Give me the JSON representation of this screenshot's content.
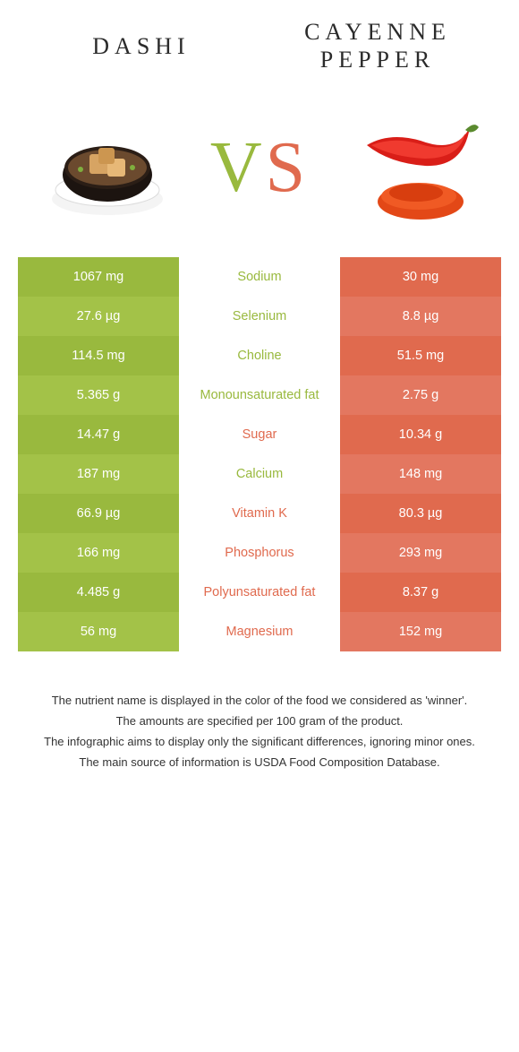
{
  "header": {
    "left_title": "DASHI",
    "right_title_line1": "CAYENNE",
    "right_title_line2": "PEPPER",
    "vs_v": "V",
    "vs_s": "S"
  },
  "colors": {
    "left_color": "#99b93e",
    "right_color": "#e06a4e",
    "left_alt": "#a3c248",
    "right_alt": "#e37760",
    "left_alt2": "#8fae37",
    "right_alt2": "#d95e41",
    "text_dark": "#2b2b2b",
    "white": "#ffffff"
  },
  "rows": [
    {
      "left": "1067 mg",
      "label": "Sodium",
      "right": "30 mg",
      "winner": "left"
    },
    {
      "left": "27.6 µg",
      "label": "Selenium",
      "right": "8.8 µg",
      "winner": "left"
    },
    {
      "left": "114.5 mg",
      "label": "Choline",
      "right": "51.5 mg",
      "winner": "left"
    },
    {
      "left": "5.365 g",
      "label": "Monounsaturated fat",
      "right": "2.75 g",
      "winner": "left"
    },
    {
      "left": "14.47 g",
      "label": "Sugar",
      "right": "10.34 g",
      "winner": "right"
    },
    {
      "left": "187 mg",
      "label": "Calcium",
      "right": "148 mg",
      "winner": "left"
    },
    {
      "left": "66.9 µg",
      "label": "Vitamin K",
      "right": "80.3 µg",
      "winner": "right"
    },
    {
      "left": "166 mg",
      "label": "Phosphorus",
      "right": "293 mg",
      "winner": "right"
    },
    {
      "left": "4.485 g",
      "label": "Polyunsaturated fat",
      "right": "8.37 g",
      "winner": "right"
    },
    {
      "left": "56 mg",
      "label": "Magnesium",
      "right": "152 mg",
      "winner": "right"
    }
  ],
  "footnotes": [
    "The nutrient name is displayed in the color of the food we considered as 'winner'.",
    "The amounts are specified per 100 gram of the product.",
    "The infographic aims to display only the significant differences, ignoring minor ones.",
    "The main source of information is USDA Food Composition Database."
  ]
}
